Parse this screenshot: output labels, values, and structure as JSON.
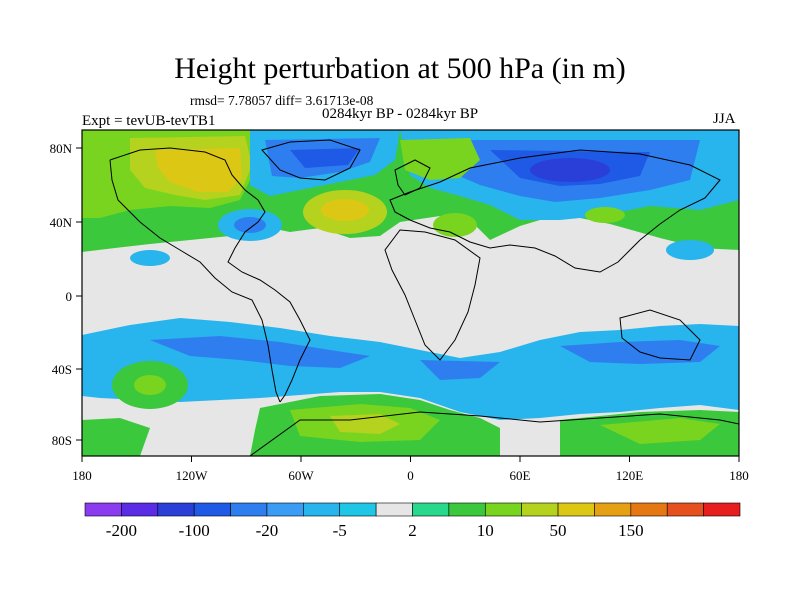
{
  "title": "Height perturbation at 500 hPa (in m)",
  "stats": "rmsd= 7.78057 diff= 3.61713e-08",
  "period": "0284kyr BP - 0284kyr BP",
  "experiment": "Expt = tevUB-tevTB1",
  "season": "JJA",
  "lon_ticks": [
    "180",
    "120W",
    "60W",
    "0",
    "60E",
    "120E",
    "180"
  ],
  "lat_ticks": [
    "80N",
    "40N",
    "0",
    "40S",
    "80S"
  ],
  "colorbar": {
    "colors": [
      "#8c3cf0",
      "#5a2ce6",
      "#2a3fd8",
      "#1e5ae6",
      "#2f7ef0",
      "#3a9cf5",
      "#28b4ec",
      "#20c6e6",
      "#e6e6e6",
      "#28d88c",
      "#3cc83c",
      "#78d41e",
      "#b4d21e",
      "#dcc814",
      "#e6a014",
      "#e67814",
      "#e6501e",
      "#e61e1e"
    ],
    "labels": [
      "-200",
      "-100",
      "-20",
      "-5",
      "2",
      "10",
      "50",
      "150"
    ]
  }
}
